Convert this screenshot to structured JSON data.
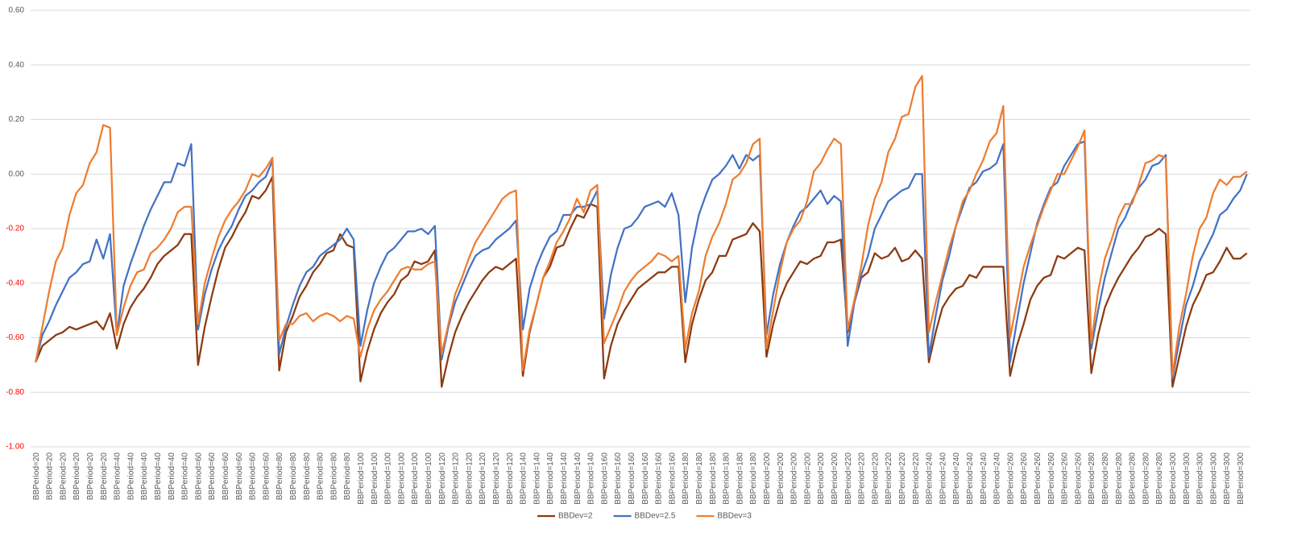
{
  "chart_data": {
    "type": "line",
    "categories": [
      "BBPeriod=20",
      null,
      "BBPeriod=20",
      null,
      "BBPeriod=20",
      null,
      "BBPeriod=20",
      null,
      "BBPeriod=20",
      null,
      "BBPeriod=20",
      null,
      "BBPeriod=40",
      null,
      "BBPeriod=40",
      null,
      "BBPeriod=40",
      null,
      "BBPeriod=40",
      null,
      "BBPeriod=40",
      null,
      "BBPeriod=40",
      null,
      "BBPeriod=60",
      null,
      "BBPeriod=60",
      null,
      "BBPeriod=60",
      null,
      "BBPeriod=60",
      null,
      "BBPeriod=60",
      null,
      "BBPeriod=60",
      null,
      "BBPeriod=80",
      null,
      "BBPeriod=80",
      null,
      "BBPeriod=80",
      null,
      "BBPeriod=80",
      null,
      "BBPeriod=80",
      null,
      "BBPeriod=80",
      null,
      "BBPeriod=100",
      null,
      "BBPeriod=100",
      null,
      "BBPeriod=100",
      null,
      "BBPeriod=100",
      null,
      "BBPeriod=100",
      null,
      "BBPeriod=100",
      null,
      "BBPeriod=120",
      null,
      "BBPeriod=120",
      null,
      "BBPeriod=120",
      null,
      "BBPeriod=120",
      null,
      "BBPeriod=120",
      null,
      "BBPeriod=120",
      null,
      "BBPeriod=140",
      null,
      "BBPeriod=140",
      null,
      "BBPeriod=140",
      null,
      "BBPeriod=140",
      null,
      "BBPeriod=140",
      null,
      "BBPeriod=140",
      null,
      "BBPeriod=160",
      null,
      "BBPeriod=160",
      null,
      "BBPeriod=160",
      null,
      "BBPeriod=160",
      null,
      "BBPeriod=160",
      null,
      "BBPeriod=160",
      null,
      "BBPeriod=180",
      null,
      "BBPeriod=180",
      null,
      "BBPeriod=180",
      null,
      "BBPeriod=180",
      null,
      "BBPeriod=180",
      null,
      "BBPeriod=180",
      null,
      "BBPeriod=200",
      null,
      "BBPeriod=200",
      null,
      "BBPeriod=200",
      null,
      "BBPeriod=200",
      null,
      "BBPeriod=200",
      null,
      "BBPeriod=200",
      null,
      "BBPeriod=220",
      null,
      "BBPeriod=220",
      null,
      "BBPeriod=220",
      null,
      "BBPeriod=220",
      null,
      "BBPeriod=220",
      null,
      "BBPeriod=220",
      null,
      "BBPeriod=240",
      null,
      "BBPeriod=240",
      null,
      "BBPeriod=240",
      null,
      "BBPeriod=240",
      null,
      "BBPeriod=240",
      null,
      "BBPeriod=240",
      null,
      "BBPeriod=260",
      null,
      "BBPeriod=260",
      null,
      "BBPeriod=260",
      null,
      "BBPeriod=260",
      null,
      "BBPeriod=260",
      null,
      "BBPeriod=260",
      null,
      "BBPeriod=280",
      null,
      "BBPeriod=280",
      null,
      "BBPeriod=280",
      null,
      "BBPeriod=280",
      null,
      "BBPeriod=280",
      null,
      "BBPeriod=280",
      null,
      "BBPeriod=300",
      null,
      "BBPeriod=300",
      null,
      "BBPeriod=300",
      null,
      "BBPeriod=300",
      null,
      "BBPeriod=300",
      null,
      "BBPeriod=300",
      null
    ],
    "series": [
      {
        "name": "BBDev=2",
        "color": "#8b3a0f",
        "values": [
          -0.69,
          -0.63,
          -0.61,
          -0.59,
          -0.58,
          -0.56,
          -0.57,
          -0.56,
          -0.55,
          -0.54,
          -0.57,
          -0.51,
          -0.64,
          -0.55,
          -0.49,
          -0.45,
          -0.42,
          -0.38,
          -0.33,
          -0.3,
          -0.28,
          -0.26,
          -0.22,
          -0.22,
          -0.7,
          -0.56,
          -0.45,
          -0.35,
          -0.27,
          -0.23,
          -0.18,
          -0.14,
          -0.08,
          -0.09,
          -0.06,
          -0.01,
          -0.72,
          -0.58,
          -0.52,
          -0.45,
          -0.41,
          -0.36,
          -0.33,
          -0.29,
          -0.28,
          -0.22,
          -0.26,
          -0.27,
          -0.76,
          -0.65,
          -0.57,
          -0.51,
          -0.47,
          -0.44,
          -0.39,
          -0.37,
          -0.32,
          -0.33,
          -0.32,
          -0.28,
          -0.78,
          -0.67,
          -0.58,
          -0.52,
          -0.47,
          -0.43,
          -0.39,
          -0.36,
          -0.34,
          -0.35,
          -0.33,
          -0.31,
          -0.74,
          -0.58,
          -0.48,
          -0.38,
          -0.34,
          -0.27,
          -0.26,
          -0.2,
          -0.15,
          -0.16,
          -0.11,
          -0.12,
          -0.75,
          -0.63,
          -0.55,
          -0.5,
          -0.46,
          -0.42,
          -0.4,
          -0.38,
          -0.36,
          -0.36,
          -0.34,
          -0.34,
          -0.69,
          -0.55,
          -0.46,
          -0.39,
          -0.36,
          -0.3,
          -0.3,
          -0.24,
          -0.23,
          -0.22,
          -0.18,
          -0.21,
          -0.67,
          -0.55,
          -0.46,
          -0.4,
          -0.36,
          -0.32,
          -0.33,
          -0.31,
          -0.3,
          -0.25,
          -0.25,
          -0.24,
          -0.58,
          -0.47,
          -0.38,
          -0.36,
          -0.29,
          -0.31,
          -0.3,
          -0.27,
          -0.32,
          -0.31,
          -0.28,
          -0.31,
          -0.69,
          -0.58,
          -0.49,
          -0.45,
          -0.42,
          -0.41,
          -0.37,
          -0.38,
          -0.34,
          -0.34,
          -0.34,
          -0.34,
          -0.74,
          -0.63,
          -0.55,
          -0.46,
          -0.41,
          -0.38,
          -0.37,
          -0.3,
          -0.31,
          -0.29,
          -0.27,
          -0.28,
          -0.73,
          -0.59,
          -0.49,
          -0.43,
          -0.38,
          -0.34,
          -0.3,
          -0.27,
          -0.23,
          -0.22,
          -0.2,
          -0.22,
          -0.78,
          -0.67,
          -0.56,
          -0.48,
          -0.43,
          -0.37,
          -0.36,
          -0.32,
          -0.27,
          -0.31,
          -0.31,
          -0.29
        ]
      },
      {
        "name": "BBDev=2.5",
        "color": "#4472c4",
        "values": [
          -0.69,
          -0.59,
          -0.54,
          -0.48,
          -0.43,
          -0.38,
          -0.36,
          -0.33,
          -0.32,
          -0.24,
          -0.31,
          -0.22,
          -0.59,
          -0.41,
          -0.33,
          -0.26,
          -0.19,
          -0.13,
          -0.08,
          -0.03,
          -0.03,
          0.04,
          0.03,
          0.11,
          -0.57,
          -0.44,
          -0.35,
          -0.28,
          -0.23,
          -0.19,
          -0.13,
          -0.08,
          -0.06,
          -0.03,
          -0.01,
          0.05,
          -0.66,
          -0.56,
          -0.48,
          -0.41,
          -0.36,
          -0.34,
          -0.3,
          -0.28,
          -0.26,
          -0.24,
          -0.2,
          -0.24,
          -0.63,
          -0.5,
          -0.4,
          -0.34,
          -0.29,
          -0.27,
          -0.24,
          -0.21,
          -0.21,
          -0.2,
          -0.22,
          -0.19,
          -0.68,
          -0.56,
          -0.47,
          -0.41,
          -0.35,
          -0.3,
          -0.28,
          -0.27,
          -0.24,
          -0.22,
          -0.2,
          -0.17,
          -0.57,
          -0.42,
          -0.34,
          -0.28,
          -0.23,
          -0.21,
          -0.15,
          -0.15,
          -0.12,
          -0.12,
          -0.11,
          -0.06,
          -0.53,
          -0.37,
          -0.27,
          -0.2,
          -0.19,
          -0.16,
          -0.12,
          -0.11,
          -0.1,
          -0.12,
          -0.07,
          -0.15,
          -0.47,
          -0.27,
          -0.15,
          -0.08,
          -0.02,
          0.0,
          0.03,
          0.07,
          0.02,
          0.07,
          0.05,
          0.07,
          -0.59,
          -0.44,
          -0.33,
          -0.25,
          -0.19,
          -0.14,
          -0.12,
          -0.09,
          -0.06,
          -0.11,
          -0.08,
          -0.1,
          -0.63,
          -0.47,
          -0.37,
          -0.3,
          -0.2,
          -0.15,
          -0.1,
          -0.08,
          -0.06,
          -0.05,
          0.0,
          0.0,
          -0.67,
          -0.52,
          -0.39,
          -0.3,
          -0.19,
          -0.12,
          -0.05,
          -0.03,
          0.01,
          0.02,
          0.04,
          0.11,
          -0.69,
          -0.54,
          -0.4,
          -0.29,
          -0.18,
          -0.11,
          -0.05,
          -0.03,
          0.03,
          0.07,
          0.11,
          0.12,
          -0.64,
          -0.5,
          -0.38,
          -0.29,
          -0.2,
          -0.16,
          -0.1,
          -0.05,
          -0.02,
          0.03,
          0.04,
          0.07,
          -0.75,
          -0.61,
          -0.48,
          -0.41,
          -0.32,
          -0.27,
          -0.22,
          -0.15,
          -0.13,
          -0.09,
          -0.06,
          0.0
        ]
      },
      {
        "name": "BBDev=3",
        "color": "#ed7d31",
        "values": [
          -0.69,
          -0.56,
          -0.43,
          -0.32,
          -0.27,
          -0.15,
          -0.07,
          -0.04,
          0.04,
          0.08,
          0.18,
          0.17,
          -0.59,
          -0.49,
          -0.41,
          -0.36,
          -0.35,
          -0.29,
          -0.27,
          -0.24,
          -0.2,
          -0.14,
          -0.12,
          -0.12,
          -0.55,
          -0.4,
          -0.31,
          -0.23,
          -0.17,
          -0.13,
          -0.1,
          -0.06,
          0.0,
          -0.01,
          0.02,
          0.06,
          -0.61,
          -0.55,
          -0.55,
          -0.52,
          -0.51,
          -0.54,
          -0.52,
          -0.51,
          -0.52,
          -0.54,
          -0.52,
          -0.53,
          -0.67,
          -0.57,
          -0.5,
          -0.46,
          -0.43,
          -0.39,
          -0.35,
          -0.34,
          -0.35,
          -0.35,
          -0.33,
          -0.32,
          -0.66,
          -0.55,
          -0.44,
          -0.38,
          -0.31,
          -0.25,
          -0.21,
          -0.17,
          -0.13,
          -0.09,
          -0.07,
          -0.06,
          -0.72,
          -0.57,
          -0.48,
          -0.38,
          -0.32,
          -0.25,
          -0.21,
          -0.16,
          -0.09,
          -0.14,
          -0.06,
          -0.04,
          -0.62,
          -0.56,
          -0.5,
          -0.43,
          -0.39,
          -0.36,
          -0.34,
          -0.32,
          -0.29,
          -0.3,
          -0.32,
          -0.3,
          -0.64,
          -0.51,
          -0.43,
          -0.3,
          -0.23,
          -0.18,
          -0.11,
          -0.02,
          0.0,
          0.04,
          0.11,
          0.13,
          -0.64,
          -0.5,
          -0.36,
          -0.25,
          -0.2,
          -0.17,
          -0.1,
          0.01,
          0.04,
          0.09,
          0.13,
          0.11,
          -0.57,
          -0.46,
          -0.34,
          -0.19,
          -0.09,
          -0.03,
          0.08,
          0.13,
          0.21,
          0.22,
          0.32,
          0.36,
          -0.58,
          -0.47,
          -0.37,
          -0.27,
          -0.19,
          -0.1,
          -0.06,
          0.0,
          0.05,
          0.12,
          0.15,
          0.25,
          -0.6,
          -0.47,
          -0.34,
          -0.26,
          -0.19,
          -0.12,
          -0.06,
          0.0,
          0.0,
          0.05,
          0.1,
          0.16,
          -0.62,
          -0.43,
          -0.31,
          -0.24,
          -0.16,
          -0.11,
          -0.11,
          -0.04,
          0.04,
          0.05,
          0.07,
          0.06,
          -0.74,
          -0.56,
          -0.44,
          -0.3,
          -0.2,
          -0.16,
          -0.07,
          -0.02,
          -0.04,
          -0.01,
          -0.01,
          0.01
        ]
      }
    ],
    "ylim": [
      -1.0,
      0.6
    ],
    "yticks": [
      {
        "value": 0.6,
        "label": "0.60"
      },
      {
        "value": 0.4,
        "label": "0.40"
      },
      {
        "value": 0.2,
        "label": "0.20"
      },
      {
        "value": 0,
        "label": "0.00"
      },
      {
        "value": -0.2,
        "label": "-0.20"
      },
      {
        "value": -0.4,
        "label": "-0.40"
      },
      {
        "value": -0.6,
        "label": "-0.60"
      },
      {
        "value": -0.8,
        "label": "-0.80"
      },
      {
        "value": -1.0,
        "label": "-1.00"
      }
    ],
    "grid": true,
    "legend": "bottom"
  }
}
